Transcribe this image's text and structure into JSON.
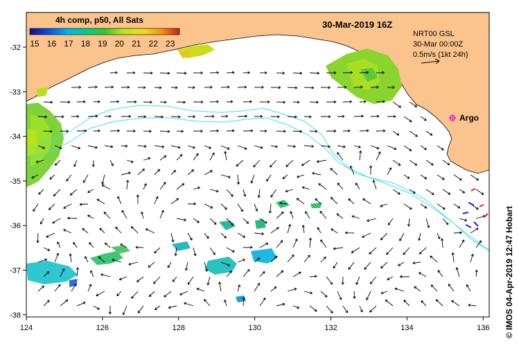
{
  "colorbar": {
    "title": "4h comp, p50, All Sats",
    "labels": [
      "15",
      "16",
      "17",
      "18",
      "19",
      "20",
      "21",
      "22",
      "23"
    ],
    "stops": [
      "#1a0a8c",
      "#0050e6",
      "#00b4f0",
      "#00d28c",
      "#32c832",
      "#b4e61e",
      "#f0dc1e",
      "#f09614",
      "#c81e14"
    ]
  },
  "header": {
    "date": "30-Mar-2019 16Z",
    "product": "NRT00 GSL",
    "analysis_time": "30-Mar 00:00Z",
    "scale_label": "0.5m/s (1kt 24h)"
  },
  "marker": {
    "label": "Argo",
    "color": "#e61ee6"
  },
  "credit": "© IMOS 04-Apr-2019 12:47 Hobart",
  "axes": {
    "x_ticks": [
      "124",
      "126",
      "128",
      "130",
      "132",
      "134",
      "136"
    ],
    "y_ticks": [
      "-32",
      "-33",
      "-34",
      "-35",
      "-36",
      "-37",
      "-38"
    ]
  },
  "colors": {
    "land": "#fbc48c",
    "sea": "#ffffff",
    "contour": "#40e0f0"
  }
}
